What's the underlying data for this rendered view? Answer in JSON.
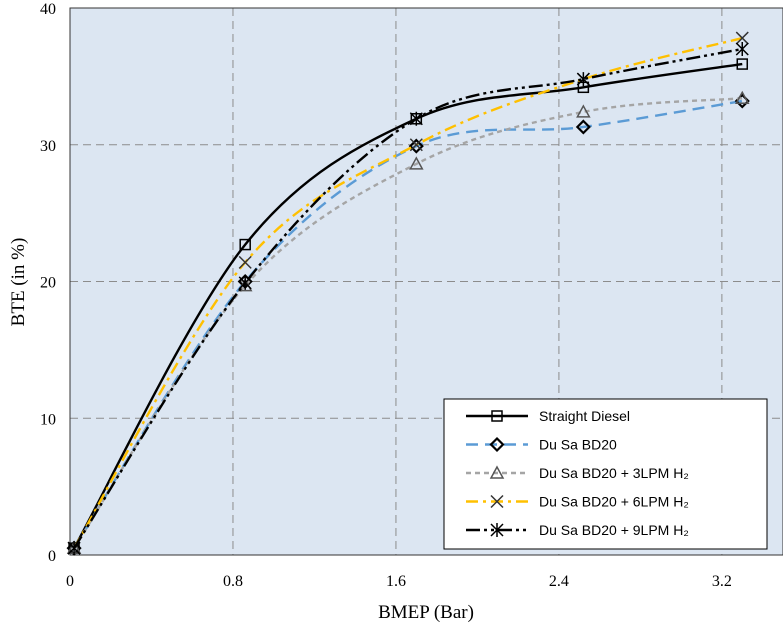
{
  "chart_data": {
    "type": "line",
    "xlabel": "BMEP (Bar)",
    "ylabel": "BTE (in %)",
    "xlim": [
      0,
      3.5
    ],
    "ylim": [
      0,
      40
    ],
    "xticks": [
      "0",
      "0.8",
      "1.6",
      "2.4",
      "3.2"
    ],
    "xtick_values": [
      0,
      0.8,
      1.6,
      2.4,
      3.2
    ],
    "yticks": [
      "0",
      "10",
      "20",
      "30",
      "40"
    ],
    "ytick_values": [
      0,
      10,
      20,
      30,
      40
    ],
    "grid": true,
    "legend_position": "bottom-right",
    "background": "#dce6f2",
    "series": [
      {
        "name": "Straight Diesel",
        "color": "#000000",
        "marker": "square",
        "dash": "solid",
        "x": [
          0.02,
          0.86,
          1.7,
          2.52,
          3.3
        ],
        "y": [
          0.5,
          22.7,
          31.9,
          34.2,
          35.9
        ]
      },
      {
        "name": "Du Sa BD20",
        "color": "#5b9bd5",
        "marker": "diamond",
        "dash": "dash",
        "x": [
          0.02,
          0.86,
          1.7,
          2.52,
          3.3
        ],
        "y": [
          0.5,
          20.0,
          29.9,
          31.3,
          33.2
        ]
      },
      {
        "name": "Du Sa BD20 + 3LPM H₂",
        "color": "#a5a5a5",
        "marker": "triangle",
        "dash": "dot",
        "x": [
          0.02,
          0.86,
          1.7,
          2.52,
          3.3
        ],
        "y": [
          0.5,
          19.7,
          28.6,
          32.4,
          33.4
        ]
      },
      {
        "name": "Du Sa BD20 + 6LPM H₂",
        "color": "#ffc000",
        "marker": "x",
        "dash": "dashdot",
        "x": [
          0.02,
          0.86,
          1.7,
          2.52,
          3.3
        ],
        "y": [
          0.5,
          21.4,
          30.0,
          34.8,
          37.8
        ]
      },
      {
        "name": "Du Sa BD20 + 9LPM H₂",
        "color": "#000000",
        "marker": "asterisk",
        "dash": "dashdotdot",
        "x": [
          0.02,
          0.86,
          1.7,
          2.52,
          3.3
        ],
        "y": [
          0.5,
          19.9,
          31.9,
          34.8,
          37.0
        ]
      }
    ]
  }
}
